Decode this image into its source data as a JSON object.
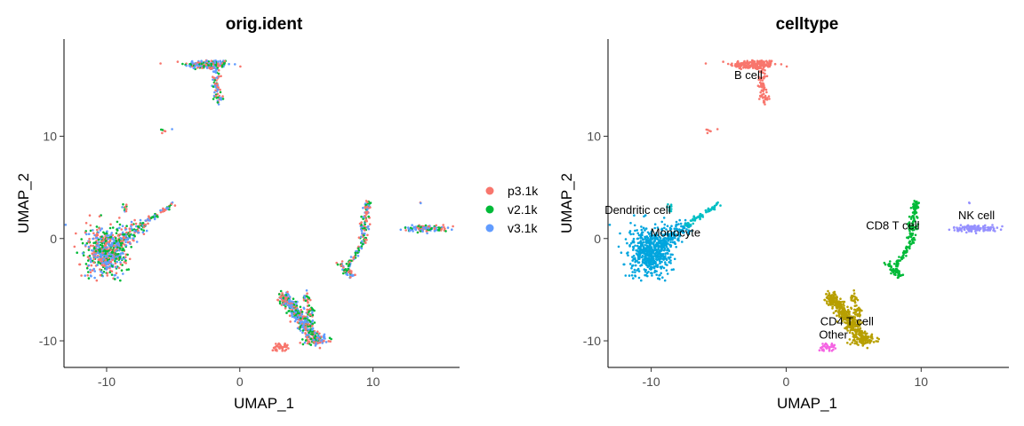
{
  "chart_data": [
    {
      "type": "scatter",
      "title": "orig.ident",
      "xlabel": "UMAP_1",
      "ylabel": "UMAP_2",
      "xlim": [
        -13.2,
        16.5
      ],
      "ylim": [
        -12.6,
        19.5
      ],
      "xticks": [
        -10,
        0,
        10
      ],
      "yticks": [
        -10,
        0,
        10
      ],
      "xtick_labels": [
        "-10",
        "0",
        "10"
      ],
      "ytick_labels": [
        "-10",
        "0",
        "10"
      ],
      "grid": false,
      "legend_position": "right",
      "series": [
        {
          "name": "p3.1k",
          "color": "#F8766D"
        },
        {
          "name": "v2.1k",
          "color": "#00BA38"
        },
        {
          "name": "v3.1k",
          "color": "#619CFF"
        }
      ]
    },
    {
      "type": "scatter",
      "title": "celltype",
      "xlabel": "UMAP_1",
      "ylabel": "UMAP_2",
      "xlim": [
        -13.2,
        16.5
      ],
      "ylim": [
        -12.6,
        19.5
      ],
      "xticks": [
        -10,
        0,
        10
      ],
      "yticks": [
        -10,
        0,
        10
      ],
      "xtick_labels": [
        "-10",
        "0",
        "10"
      ],
      "ytick_labels": [
        "-10",
        "0",
        "10"
      ],
      "grid": false,
      "legend_position": "none",
      "clusters": [
        {
          "name": "B cell",
          "color": "#F8766D",
          "label_x": -2.8,
          "label_y": 15.6
        },
        {
          "name": "CD4 T cell",
          "color": "#B79F00",
          "label_x": 4.5,
          "label_y": -8.5
        },
        {
          "name": "CD8 T cell",
          "color": "#00BA38",
          "label_x": 7.9,
          "label_y": 0.9
        },
        {
          "name": "Dendritic cell",
          "color": "#00BFC4",
          "label_x": -11.0,
          "label_y": 2.4
        },
        {
          "name": "Monocyte",
          "color": "#00A5DE",
          "label_x": -8.2,
          "label_y": 0.2
        },
        {
          "name": "NK cell",
          "color": "#9590FF",
          "label_x": 14.1,
          "label_y": 1.9
        },
        {
          "name": "Other",
          "color": "#F564E3",
          "label_x": 3.5,
          "label_y": -9.8
        }
      ]
    }
  ]
}
